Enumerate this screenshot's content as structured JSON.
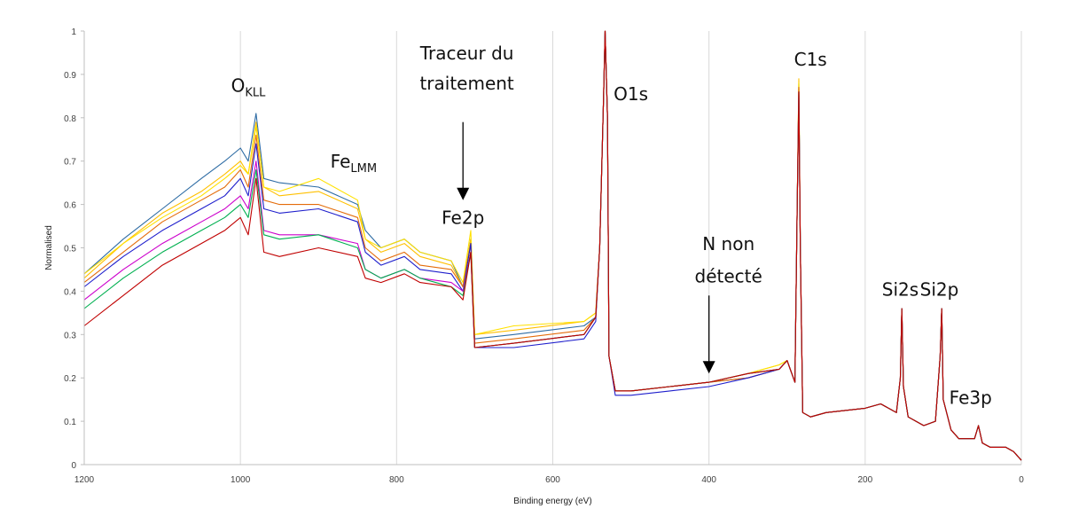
{
  "chart_data": {
    "type": "line",
    "xlabel": "Binding energy (eV)",
    "ylabel": "Normalised",
    "x_reversed": true,
    "xlim": [
      1200,
      0
    ],
    "ylim": [
      0,
      1
    ],
    "x_ticks": [
      1200,
      1000,
      800,
      600,
      400,
      200,
      0
    ],
    "y_ticks": [
      0,
      0.1,
      0.2,
      0.3,
      0.4,
      0.5,
      0.6,
      0.7,
      0.8,
      0.9,
      1
    ],
    "grid": "vertical",
    "legend": "none",
    "x": [
      1200,
      1150,
      1100,
      1050,
      1020,
      1000,
      990,
      980,
      970,
      950,
      900,
      850,
      840,
      820,
      790,
      770,
      730,
      715,
      705,
      700,
      650,
      560,
      545,
      540,
      535,
      533,
      530,
      528,
      520,
      500,
      450,
      400,
      350,
      310,
      300,
      290,
      287,
      285,
      283,
      280,
      270,
      250,
      200,
      180,
      160,
      155,
      153,
      151,
      145,
      125,
      110,
      104,
      102,
      100,
      90,
      80,
      60,
      55,
      50,
      40,
      30,
      25,
      20,
      10,
      0
    ],
    "series": [
      {
        "color": "#2e6ca4",
        "values": [
          0.44,
          0.52,
          0.59,
          0.66,
          0.7,
          0.73,
          0.7,
          0.81,
          0.66,
          0.65,
          0.64,
          0.6,
          0.54,
          0.5,
          0.52,
          0.49,
          0.47,
          0.41,
          0.52,
          0.29,
          0.3,
          0.32,
          0.34,
          0.5,
          0.85,
          1.0,
          0.8,
          0.25,
          0.17,
          0.17,
          0.18,
          0.19,
          0.2,
          0.22,
          0.24,
          0.19,
          0.6,
          0.88,
          0.5,
          0.12,
          0.11,
          0.12,
          0.13,
          0.14,
          0.12,
          0.2,
          0.36,
          0.18,
          0.11,
          0.09,
          0.1,
          0.25,
          0.36,
          0.15,
          0.08,
          0.06,
          0.06,
          0.09,
          0.05,
          0.04,
          0.04,
          0.04,
          0.04,
          0.03,
          0.01
        ]
      },
      {
        "color": "#ffc000",
        "values": [
          0.43,
          0.51,
          0.58,
          0.63,
          0.67,
          0.7,
          0.67,
          0.79,
          0.64,
          0.62,
          0.63,
          0.59,
          0.52,
          0.49,
          0.51,
          0.48,
          0.46,
          0.41,
          0.52,
          0.3,
          0.31,
          0.33,
          0.35,
          0.5,
          0.85,
          1.0,
          0.8,
          0.25,
          0.17,
          0.17,
          0.18,
          0.19,
          0.21,
          0.23,
          0.24,
          0.19,
          0.6,
          0.89,
          0.5,
          0.12,
          0.11,
          0.12,
          0.13,
          0.14,
          0.12,
          0.2,
          0.36,
          0.18,
          0.11,
          0.09,
          0.1,
          0.25,
          0.36,
          0.15,
          0.08,
          0.06,
          0.06,
          0.09,
          0.05,
          0.04,
          0.04,
          0.04,
          0.04,
          0.03,
          0.01
        ]
      },
      {
        "color": "#ffe100",
        "values": [
          0.44,
          0.51,
          0.57,
          0.62,
          0.66,
          0.69,
          0.67,
          0.78,
          0.64,
          0.63,
          0.66,
          0.61,
          0.52,
          0.5,
          0.52,
          0.49,
          0.47,
          0.42,
          0.54,
          0.3,
          0.32,
          0.33,
          0.35,
          0.5,
          0.85,
          1.0,
          0.8,
          0.25,
          0.17,
          0.17,
          0.18,
          0.19,
          0.21,
          0.23,
          0.24,
          0.19,
          0.6,
          0.88,
          0.5,
          0.12,
          0.11,
          0.12,
          0.13,
          0.14,
          0.12,
          0.2,
          0.36,
          0.18,
          0.11,
          0.09,
          0.1,
          0.25,
          0.36,
          0.15,
          0.08,
          0.06,
          0.06,
          0.09,
          0.05,
          0.04,
          0.04,
          0.04,
          0.04,
          0.03,
          0.01
        ]
      },
      {
        "color": "#e46c0a",
        "values": [
          0.42,
          0.49,
          0.56,
          0.61,
          0.64,
          0.68,
          0.64,
          0.76,
          0.61,
          0.6,
          0.6,
          0.57,
          0.5,
          0.47,
          0.49,
          0.46,
          0.45,
          0.41,
          0.51,
          0.28,
          0.29,
          0.31,
          0.34,
          0.5,
          0.85,
          1.0,
          0.8,
          0.25,
          0.17,
          0.17,
          0.18,
          0.19,
          0.2,
          0.22,
          0.24,
          0.19,
          0.6,
          0.87,
          0.5,
          0.12,
          0.11,
          0.12,
          0.13,
          0.14,
          0.12,
          0.2,
          0.36,
          0.18,
          0.11,
          0.09,
          0.1,
          0.25,
          0.36,
          0.15,
          0.08,
          0.06,
          0.06,
          0.09,
          0.05,
          0.04,
          0.04,
          0.04,
          0.04,
          0.03,
          0.01
        ]
      },
      {
        "color": "#1f1fcc",
        "values": [
          0.41,
          0.48,
          0.54,
          0.59,
          0.62,
          0.66,
          0.62,
          0.74,
          0.59,
          0.58,
          0.59,
          0.56,
          0.49,
          0.46,
          0.48,
          0.45,
          0.44,
          0.4,
          0.51,
          0.27,
          0.27,
          0.29,
          0.33,
          0.5,
          0.85,
          1.0,
          0.8,
          0.25,
          0.16,
          0.16,
          0.17,
          0.18,
          0.2,
          0.22,
          0.24,
          0.19,
          0.6,
          0.86,
          0.5,
          0.12,
          0.11,
          0.12,
          0.13,
          0.14,
          0.12,
          0.2,
          0.36,
          0.18,
          0.11,
          0.09,
          0.1,
          0.25,
          0.36,
          0.15,
          0.08,
          0.06,
          0.06,
          0.09,
          0.05,
          0.04,
          0.04,
          0.04,
          0.04,
          0.03,
          0.01
        ]
      },
      {
        "color": "#cc00cc",
        "values": [
          0.38,
          0.45,
          0.51,
          0.56,
          0.59,
          0.62,
          0.59,
          0.7,
          0.54,
          0.53,
          0.53,
          0.51,
          0.45,
          0.43,
          0.45,
          0.43,
          0.42,
          0.4,
          0.49,
          0.27,
          0.28,
          0.3,
          0.34,
          0.5,
          0.85,
          1.0,
          0.8,
          0.25,
          0.17,
          0.17,
          0.18,
          0.19,
          0.21,
          0.22,
          0.24,
          0.19,
          0.6,
          0.86,
          0.5,
          0.12,
          0.11,
          0.12,
          0.13,
          0.14,
          0.12,
          0.2,
          0.36,
          0.18,
          0.11,
          0.09,
          0.1,
          0.25,
          0.36,
          0.15,
          0.08,
          0.06,
          0.06,
          0.09,
          0.05,
          0.04,
          0.04,
          0.04,
          0.04,
          0.03,
          0.01
        ]
      },
      {
        "color": "#00b050",
        "values": [
          0.36,
          0.43,
          0.49,
          0.54,
          0.57,
          0.6,
          0.57,
          0.68,
          0.53,
          0.52,
          0.53,
          0.5,
          0.45,
          0.43,
          0.45,
          0.43,
          0.41,
          0.39,
          0.49,
          0.27,
          0.28,
          0.3,
          0.34,
          0.5,
          0.85,
          1.0,
          0.8,
          0.25,
          0.17,
          0.17,
          0.18,
          0.19,
          0.21,
          0.22,
          0.24,
          0.19,
          0.6,
          0.86,
          0.5,
          0.12,
          0.11,
          0.12,
          0.13,
          0.14,
          0.12,
          0.2,
          0.36,
          0.18,
          0.11,
          0.09,
          0.1,
          0.25,
          0.36,
          0.15,
          0.08,
          0.06,
          0.06,
          0.09,
          0.05,
          0.04,
          0.04,
          0.04,
          0.04,
          0.03,
          0.01
        ]
      },
      {
        "color": "#c00000",
        "values": [
          0.32,
          0.39,
          0.46,
          0.51,
          0.54,
          0.57,
          0.53,
          0.66,
          0.49,
          0.48,
          0.5,
          0.48,
          0.43,
          0.42,
          0.44,
          0.42,
          0.41,
          0.38,
          0.49,
          0.27,
          0.28,
          0.3,
          0.34,
          0.5,
          0.85,
          1.0,
          0.8,
          0.25,
          0.17,
          0.17,
          0.18,
          0.19,
          0.21,
          0.22,
          0.24,
          0.19,
          0.6,
          0.86,
          0.5,
          0.12,
          0.11,
          0.12,
          0.13,
          0.14,
          0.12,
          0.2,
          0.36,
          0.18,
          0.11,
          0.09,
          0.1,
          0.25,
          0.36,
          0.15,
          0.08,
          0.06,
          0.06,
          0.09,
          0.05,
          0.04,
          0.04,
          0.04,
          0.04,
          0.03,
          0.01
        ]
      }
    ],
    "annotations": [
      {
        "main": "O",
        "sub": "KLL",
        "x": 990,
        "y": 0.86
      },
      {
        "main": "Fe",
        "sub": "LMM",
        "x": 855,
        "y": 0.685
      },
      {
        "main": "Traceur du",
        "sub": "",
        "x": 710,
        "y": 0.935
      },
      {
        "main": "traitement",
        "sub": "",
        "x": 710,
        "y": 0.865
      },
      {
        "main": "Fe2p",
        "sub": "",
        "x": 715,
        "y": 0.555
      },
      {
        "main": "O1s",
        "sub": "",
        "x": 500,
        "y": 0.84
      },
      {
        "main": "C1s",
        "sub": "",
        "x": 270,
        "y": 0.92
      },
      {
        "main": "N non",
        "sub": "",
        "x": 375,
        "y": 0.495
      },
      {
        "main": "détecté",
        "sub": "",
        "x": 375,
        "y": 0.42
      },
      {
        "main": "Si2s",
        "sub": "",
        "x": 155,
        "y": 0.39
      },
      {
        "main": "Si2p",
        "sub": "",
        "x": 105,
        "y": 0.39
      },
      {
        "main": "Fe3p",
        "sub": "",
        "x": 65,
        "y": 0.14
      }
    ],
    "arrows": [
      {
        "x": 715,
        "from_y": 0.79,
        "to_y": 0.61
      },
      {
        "x": 400,
        "from_y": 0.39,
        "to_y": 0.21
      }
    ]
  }
}
